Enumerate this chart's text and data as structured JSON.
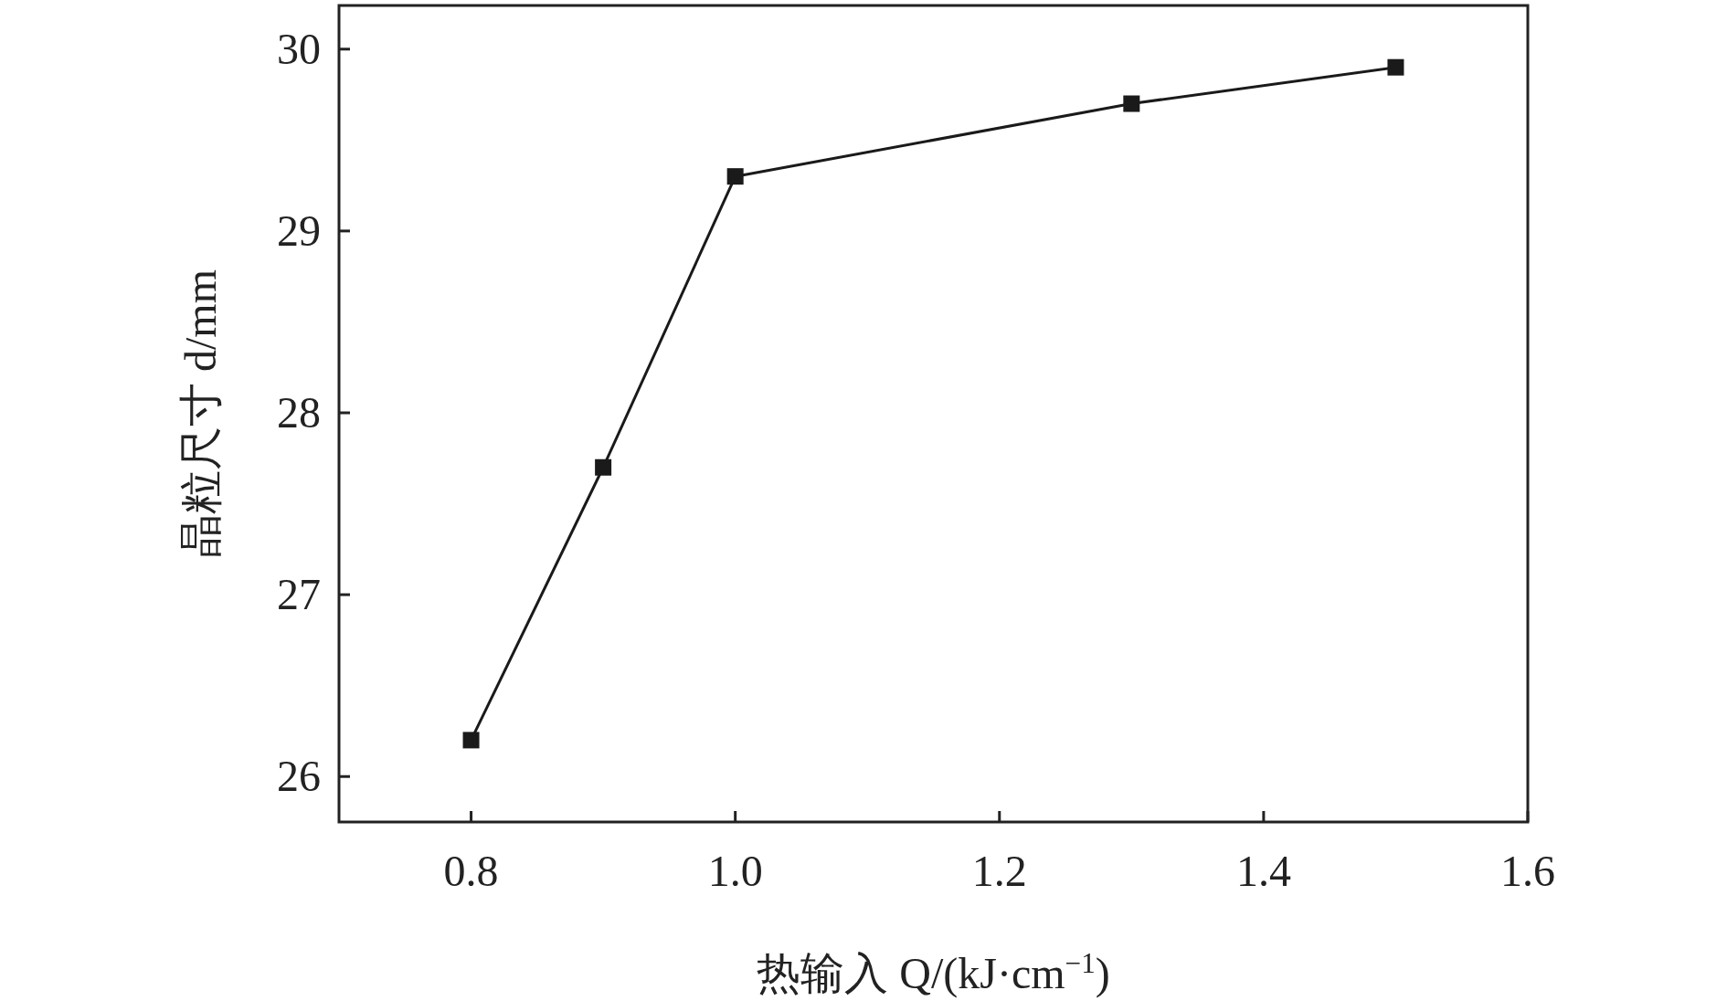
{
  "chart_data": {
    "type": "line",
    "xlabel": "热输入 Q/(kJ·cm$^{−1}$)",
    "ylabel": "晶粒尺寸 d/mm",
    "x": [
      0.8,
      0.9,
      1.0,
      1.3,
      1.5
    ],
    "values": [
      26.2,
      27.7,
      29.3,
      29.7,
      29.9
    ],
    "color": "#1a1a1a",
    "marker": "square",
    "line_style": "solid",
    "grid": false,
    "xlim": [
      0.7,
      1.6
    ],
    "xticks": [
      0.8,
      {
        "value": 1.0,
        "label": "1.0"
      },
      1.2,
      1.4,
      1.6
    ],
    "ylim": [
      25.75,
      30.24
    ],
    "yticks": [
      26,
      27,
      28,
      29,
      30
    ]
  }
}
